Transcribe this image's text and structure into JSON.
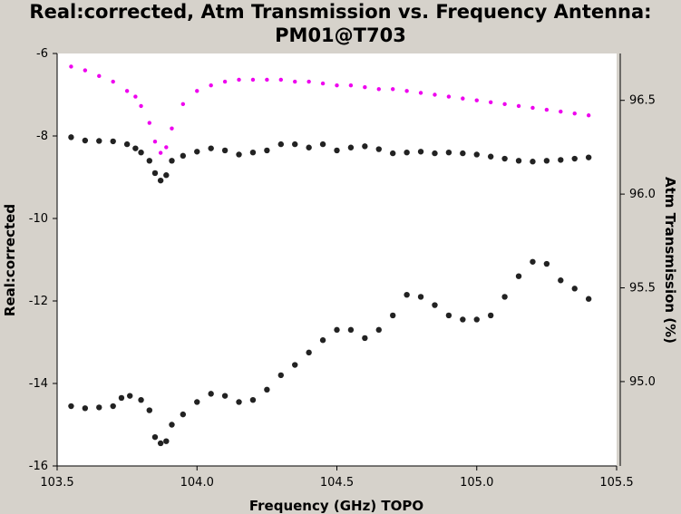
{
  "chart_data": {
    "type": "scatter",
    "title_line1": "Real:corrected, Atm Transmission vs. Frequency Antenna:",
    "title_line2": "PM01@T703",
    "xlabel": "Frequency (GHz) TOPO",
    "ylabel_left": "Real:corrected",
    "ylabel_right": "Atm Transmission (%)",
    "xlim": [
      103.5,
      105.5
    ],
    "ylim_left": [
      -16.0,
      -6.0
    ],
    "ylim_right": [
      94.55,
      96.75
    ],
    "x_ticks": [
      "103.5",
      "104.0",
      "104.5",
      "105.0",
      "105.5"
    ],
    "y_ticks_left": [
      "-6",
      "-8",
      "-10",
      "-12",
      "-14",
      "-16"
    ],
    "y_ticks_right": [
      "96.5",
      "96.0",
      "95.5",
      "95.0"
    ],
    "colors": {
      "real_series": "#222222",
      "atm_series": "#ee00ee",
      "plot_bg": "#ffffff",
      "frame_bg": "#d6d2cb"
    },
    "series": [
      {
        "axis": "left",
        "color": "#222222",
        "points": [
          [
            103.55,
            -8.03
          ],
          [
            103.6,
            -8.11
          ],
          [
            103.65,
            -8.12
          ],
          [
            103.7,
            -8.13
          ],
          [
            103.75,
            -8.2
          ],
          [
            103.78,
            -8.3
          ],
          [
            103.8,
            -8.4
          ],
          [
            103.83,
            -8.6
          ],
          [
            103.85,
            -8.9
          ],
          [
            103.87,
            -9.08
          ],
          [
            103.89,
            -8.95
          ],
          [
            103.91,
            -8.6
          ],
          [
            103.95,
            -8.48
          ],
          [
            104.0,
            -8.38
          ],
          [
            104.05,
            -8.3
          ],
          [
            104.1,
            -8.35
          ],
          [
            104.15,
            -8.45
          ],
          [
            104.2,
            -8.4
          ],
          [
            104.25,
            -8.35
          ],
          [
            104.3,
            -8.2
          ],
          [
            104.35,
            -8.2
          ],
          [
            104.4,
            -8.28
          ],
          [
            104.45,
            -8.2
          ],
          [
            104.5,
            -8.35
          ],
          [
            104.55,
            -8.28
          ],
          [
            104.6,
            -8.25
          ],
          [
            104.65,
            -8.32
          ],
          [
            104.7,
            -8.42
          ],
          [
            104.75,
            -8.4
          ],
          [
            104.8,
            -8.38
          ],
          [
            104.85,
            -8.42
          ],
          [
            104.9,
            -8.4
          ],
          [
            104.95,
            -8.42
          ],
          [
            105.0,
            -8.45
          ],
          [
            105.05,
            -8.5
          ],
          [
            105.1,
            -8.55
          ],
          [
            105.15,
            -8.6
          ],
          [
            105.2,
            -8.62
          ],
          [
            105.25,
            -8.6
          ],
          [
            105.3,
            -8.58
          ],
          [
            105.35,
            -8.55
          ],
          [
            105.4,
            -8.52
          ]
        ]
      },
      {
        "axis": "left",
        "color": "#222222",
        "points": [
          [
            103.55,
            -14.55
          ],
          [
            103.6,
            -14.6
          ],
          [
            103.65,
            -14.58
          ],
          [
            103.7,
            -14.55
          ],
          [
            103.73,
            -14.35
          ],
          [
            103.76,
            -14.3
          ],
          [
            103.8,
            -14.4
          ],
          [
            103.83,
            -14.65
          ],
          [
            103.85,
            -15.3
          ],
          [
            103.87,
            -15.45
          ],
          [
            103.89,
            -15.4
          ],
          [
            103.91,
            -15.0
          ],
          [
            103.95,
            -14.75
          ],
          [
            104.0,
            -14.45
          ],
          [
            104.05,
            -14.25
          ],
          [
            104.1,
            -14.3
          ],
          [
            104.15,
            -14.45
          ],
          [
            104.2,
            -14.4
          ],
          [
            104.25,
            -14.15
          ],
          [
            104.3,
            -13.8
          ],
          [
            104.35,
            -13.55
          ],
          [
            104.4,
            -13.25
          ],
          [
            104.45,
            -12.95
          ],
          [
            104.5,
            -12.7
          ],
          [
            104.55,
            -12.7
          ],
          [
            104.6,
            -12.9
          ],
          [
            104.65,
            -12.7
          ],
          [
            104.7,
            -12.35
          ],
          [
            104.75,
            -11.85
          ],
          [
            104.8,
            -11.9
          ],
          [
            104.85,
            -12.1
          ],
          [
            104.9,
            -12.35
          ],
          [
            104.95,
            -12.45
          ],
          [
            105.0,
            -12.45
          ],
          [
            105.05,
            -12.35
          ],
          [
            105.1,
            -11.9
          ],
          [
            105.15,
            -11.4
          ],
          [
            105.2,
            -11.05
          ],
          [
            105.25,
            -11.1
          ],
          [
            105.3,
            -11.5
          ],
          [
            105.35,
            -11.7
          ],
          [
            105.4,
            -11.95
          ]
        ]
      },
      {
        "axis": "right",
        "color": "#ee00ee",
        "points": [
          [
            103.55,
            96.68
          ],
          [
            103.6,
            96.66
          ],
          [
            103.65,
            96.63
          ],
          [
            103.7,
            96.6
          ],
          [
            103.75,
            96.55
          ],
          [
            103.78,
            96.52
          ],
          [
            103.8,
            96.47
          ],
          [
            103.83,
            96.38
          ],
          [
            103.85,
            96.28
          ],
          [
            103.87,
            96.22
          ],
          [
            103.89,
            96.25
          ],
          [
            103.91,
            96.35
          ],
          [
            103.95,
            96.48
          ],
          [
            104.0,
            96.55
          ],
          [
            104.05,
            96.58
          ],
          [
            104.1,
            96.6
          ],
          [
            104.15,
            96.61
          ],
          [
            104.2,
            96.61
          ],
          [
            104.25,
            96.61
          ],
          [
            104.3,
            96.61
          ],
          [
            104.35,
            96.6
          ],
          [
            104.4,
            96.6
          ],
          [
            104.45,
            96.59
          ],
          [
            104.5,
            96.58
          ],
          [
            104.55,
            96.58
          ],
          [
            104.6,
            96.57
          ],
          [
            104.65,
            96.56
          ],
          [
            104.7,
            96.56
          ],
          [
            104.75,
            96.55
          ],
          [
            104.8,
            96.54
          ],
          [
            104.85,
            96.53
          ],
          [
            104.9,
            96.52
          ],
          [
            104.95,
            96.51
          ],
          [
            105.0,
            96.5
          ],
          [
            105.05,
            96.49
          ],
          [
            105.1,
            96.48
          ],
          [
            105.15,
            96.47
          ],
          [
            105.2,
            96.46
          ],
          [
            105.25,
            96.45
          ],
          [
            105.3,
            96.44
          ],
          [
            105.35,
            96.43
          ],
          [
            105.4,
            96.42
          ]
        ]
      }
    ]
  }
}
